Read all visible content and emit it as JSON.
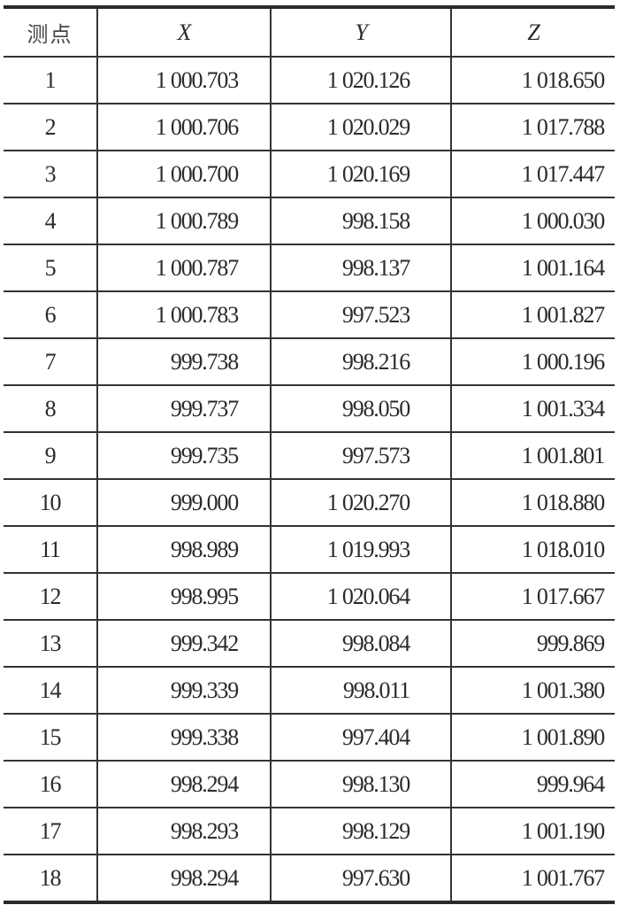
{
  "table": {
    "headers": [
      "测点",
      "X",
      "Y",
      "Z"
    ],
    "rows": [
      [
        "1",
        "1 000.703",
        "1 020.126",
        "1 018.650"
      ],
      [
        "2",
        "1 000.706",
        "1 020.029",
        "1 017.788"
      ],
      [
        "3",
        "1 000.700",
        "1 020.169",
        "1 017.447"
      ],
      [
        "4",
        "1 000.789",
        "998.158",
        "1 000.030"
      ],
      [
        "5",
        "1 000.787",
        "998.137",
        "1 001.164"
      ],
      [
        "6",
        "1 000.783",
        "997.523",
        "1 001.827"
      ],
      [
        "7",
        "999.738",
        "998.216",
        "1 000.196"
      ],
      [
        "8",
        "999.737",
        "998.050",
        "1 001.334"
      ],
      [
        "9",
        "999.735",
        "997.573",
        "1 001.801"
      ],
      [
        "10",
        "999.000",
        "1 020.270",
        "1 018.880"
      ],
      [
        "11",
        "998.989",
        "1 019.993",
        "1 018.010"
      ],
      [
        "12",
        "998.995",
        "1 020.064",
        "1 017.667"
      ],
      [
        "13",
        "999.342",
        "998.084",
        "999.869"
      ],
      [
        "14",
        "999.339",
        "998.011",
        "1 001.380"
      ],
      [
        "15",
        "999.338",
        "997.404",
        "1 001.890"
      ],
      [
        "16",
        "998.294",
        "998.130",
        "999.964"
      ],
      [
        "17",
        "998.293",
        "998.129",
        "1 001.190"
      ],
      [
        "18",
        "998.294",
        "997.630",
        "1 001.767"
      ]
    ]
  }
}
